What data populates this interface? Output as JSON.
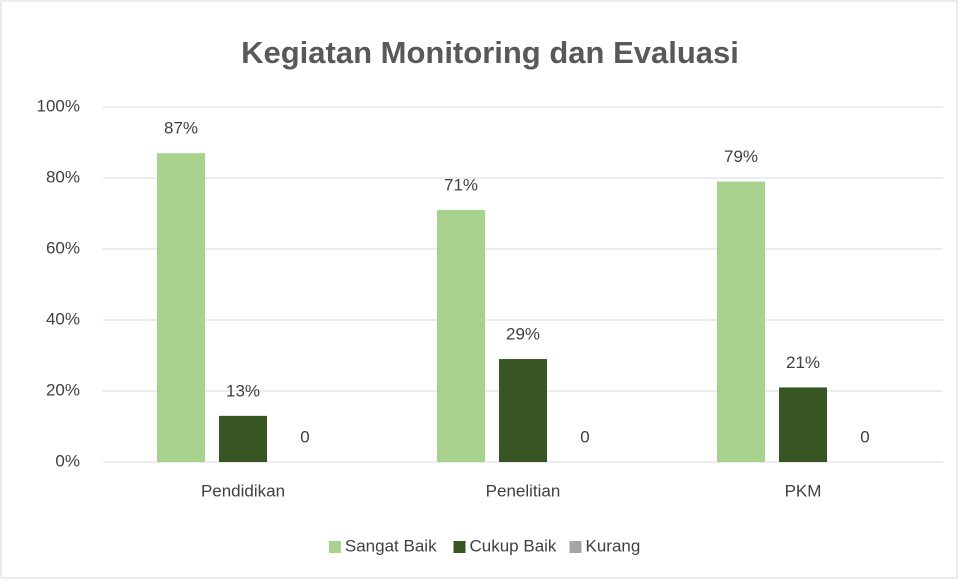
{
  "chart_data": {
    "type": "bar",
    "title": "Kegiatan Monitoring dan Evaluasi",
    "categories": [
      "Pendidikan",
      "Penelitian",
      "PKM"
    ],
    "series": [
      {
        "name": "Sangat Baik",
        "color": "#a9d18e",
        "values": [
          87,
          71,
          79
        ],
        "value_labels": [
          "87%",
          "71%",
          "79%"
        ]
      },
      {
        "name": "Cukup Baik",
        "color": "#375623",
        "values": [
          13,
          29,
          21
        ],
        "value_labels": [
          "13%",
          "29%",
          "21%"
        ]
      },
      {
        "name": "Kurang",
        "color": "#a5a5a5",
        "values": [
          0,
          0,
          0
        ]
      }
    ],
    "ylim": [
      0,
      100
    ],
    "yticks": [
      {
        "value": 0,
        "label": "0%"
      },
      {
        "value": 20,
        "label": "20%"
      },
      {
        "value": 40,
        "label": "40%"
      },
      {
        "value": 60,
        "label": "60%"
      },
      {
        "value": 80,
        "label": "80%"
      },
      {
        "value": 100,
        "label": "100%"
      }
    ],
    "grid": true,
    "legend": "bottom"
  }
}
